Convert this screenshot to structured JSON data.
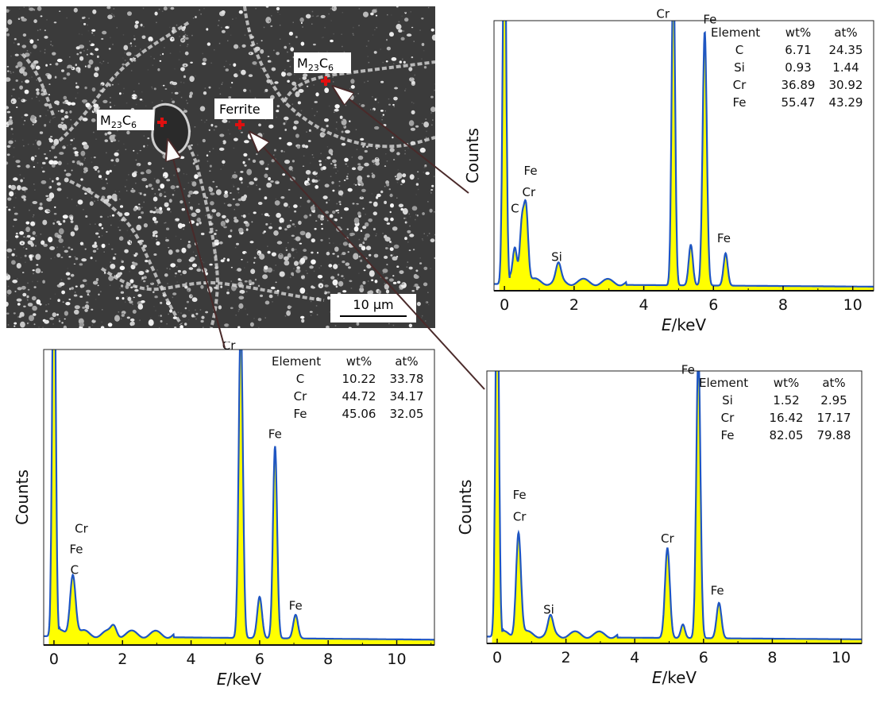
{
  "micrograph": {
    "labels": [
      {
        "main": "M",
        "sub1": "23",
        "mid": "C",
        "sub2": "6"
      },
      {
        "main": "Ferrite"
      },
      {
        "main": "M",
        "sub1": "23",
        "mid": "C",
        "sub2": "6"
      }
    ],
    "scale_bar": "10 µm"
  },
  "chart_data": [
    {
      "type": "line",
      "target": "M23C6 (right)",
      "xlabel_var": "E",
      "xlabel_unit": "/keV",
      "ylabel": "Counts",
      "xlim": [
        -0.3,
        10.6
      ],
      "x_ticks": [
        "0",
        "2",
        "4",
        "6",
        "8",
        "10"
      ],
      "x_tick_values": [
        0,
        2,
        4,
        6,
        8,
        10
      ],
      "peaks": [
        {
          "x": 0.0,
          "h": 1.45,
          "w": 0.05
        },
        {
          "x": 0.3,
          "h": 0.12,
          "w": 0.06
        },
        {
          "x": 0.5,
          "h": 0.22,
          "w": 0.06
        },
        {
          "x": 0.62,
          "h": 0.27,
          "w": 0.06
        },
        {
          "x": 1.55,
          "h": 0.06,
          "w": 0.07
        },
        {
          "x": 4.85,
          "h": 1.2,
          "w": 0.05
        },
        {
          "x": 5.35,
          "h": 0.15,
          "w": 0.06
        },
        {
          "x": 5.75,
          "h": 0.94,
          "w": 0.06
        },
        {
          "x": 6.35,
          "h": 0.12,
          "w": 0.06
        }
      ],
      "baseline": 0.025,
      "peak_labels": [
        {
          "text": "Cr",
          "x": 4.55,
          "y": 1.01
        },
        {
          "text": "Fe",
          "x": 5.9,
          "y": 0.99
        },
        {
          "text": "Fe",
          "x": 0.75,
          "y": 0.43
        },
        {
          "text": "Cr",
          "x": 0.7,
          "y": 0.35
        },
        {
          "text": "C",
          "x": 0.3,
          "y": 0.29
        },
        {
          "text": "Si",
          "x": 1.5,
          "y": 0.11
        },
        {
          "text": "Fe",
          "x": 6.3,
          "y": 0.18
        }
      ],
      "composition_table": {
        "headers": [
          "Element",
          "wt%",
          "at%"
        ],
        "rows": [
          [
            "C",
            "6.71",
            "24.35"
          ],
          [
            "Si",
            "0.93",
            "1.44"
          ],
          [
            "Cr",
            "36.89",
            "30.92"
          ],
          [
            "Fe",
            "55.47",
            "43.29"
          ]
        ]
      }
    },
    {
      "type": "line",
      "target": "M23C6 (left)",
      "xlabel_var": "E",
      "xlabel_unit": "/keV",
      "ylabel": "Counts",
      "xlim": [
        -0.3,
        11.1
      ],
      "x_ticks": [
        "0",
        "2",
        "4",
        "6",
        "8",
        "10"
      ],
      "x_tick_values": [
        0,
        2,
        4,
        6,
        8,
        10
      ],
      "peaks": [
        {
          "x": 0.0,
          "h": 1.45,
          "w": 0.05
        },
        {
          "x": 0.55,
          "h": 0.21,
          "w": 0.08
        },
        {
          "x": 1.75,
          "h": 0.03,
          "w": 0.08
        },
        {
          "x": 5.45,
          "h": 1.08,
          "w": 0.06
        },
        {
          "x": 6.0,
          "h": 0.14,
          "w": 0.07
        },
        {
          "x": 6.45,
          "h": 0.65,
          "w": 0.06
        },
        {
          "x": 7.05,
          "h": 0.08,
          "w": 0.07
        }
      ],
      "baseline": 0.03,
      "peak_labels": [
        {
          "text": "Cr",
          "x": 5.1,
          "y": 1.0
        },
        {
          "text": "Fe",
          "x": 6.45,
          "y": 0.7
        },
        {
          "text": "Cr",
          "x": 0.8,
          "y": 0.38
        },
        {
          "text": "Fe",
          "x": 0.65,
          "y": 0.31
        },
        {
          "text": "C",
          "x": 0.6,
          "y": 0.24
        },
        {
          "text": "Fe",
          "x": 7.05,
          "y": 0.12
        }
      ],
      "composition_table": {
        "headers": [
          "Element",
          "wt%",
          "at%"
        ],
        "rows": [
          [
            "C",
            "10.22",
            "33.78"
          ],
          [
            "Cr",
            "44.72",
            "34.17"
          ],
          [
            "Fe",
            "45.06",
            "32.05"
          ]
        ]
      }
    },
    {
      "type": "line",
      "target": "Ferrite",
      "xlabel_var": "E",
      "xlabel_unit": "/keV",
      "ylabel": "Counts",
      "xlim": [
        -0.3,
        10.6
      ],
      "x_ticks": [
        "0",
        "2",
        "4",
        "6",
        "8",
        "10"
      ],
      "x_tick_values": [
        0,
        2,
        4,
        6,
        8,
        10
      ],
      "peaks": [
        {
          "x": 0.0,
          "h": 1.45,
          "w": 0.05
        },
        {
          "x": 0.62,
          "h": 0.38,
          "w": 0.07
        },
        {
          "x": 1.55,
          "h": 0.06,
          "w": 0.07
        },
        {
          "x": 4.95,
          "h": 0.33,
          "w": 0.07
        },
        {
          "x": 5.4,
          "h": 0.05,
          "w": 0.06
        },
        {
          "x": 5.85,
          "h": 1.05,
          "w": 0.06
        },
        {
          "x": 6.45,
          "h": 0.13,
          "w": 0.07
        }
      ],
      "baseline": 0.025,
      "peak_labels": [
        {
          "text": "Fe",
          "x": 5.55,
          "y": 0.99
        },
        {
          "text": "Fe",
          "x": 0.65,
          "y": 0.53
        },
        {
          "text": "Cr",
          "x": 0.65,
          "y": 0.45
        },
        {
          "text": "Cr",
          "x": 4.95,
          "y": 0.37
        },
        {
          "text": "Si",
          "x": 1.5,
          "y": 0.11
        },
        {
          "text": "Fe",
          "x": 6.4,
          "y": 0.18
        }
      ],
      "composition_table": {
        "headers": [
          "Element",
          "wt%",
          "at%"
        ],
        "rows": [
          [
            "Si",
            "1.52",
            "2.95"
          ],
          [
            "Cr",
            "16.42",
            "17.17"
          ],
          [
            "Fe",
            "82.05",
            "79.88"
          ]
        ]
      }
    }
  ],
  "colors": {
    "fill": "#ffff00",
    "spectrum_line": "#1f56c2",
    "marker": "#e01010",
    "pointer": "#4a2a2a"
  }
}
